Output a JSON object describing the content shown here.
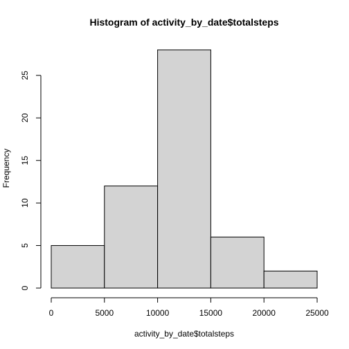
{
  "chart_data": {
    "type": "bar",
    "title": "Histogram of activity_by_date$totalsteps",
    "xlabel": "activity_by_date$totalsteps",
    "ylabel": "Frequency",
    "bins": [
      {
        "from": 0,
        "to": 5000,
        "count": 5
      },
      {
        "from": 5000,
        "to": 10000,
        "count": 12
      },
      {
        "from": 10000,
        "to": 15000,
        "count": 28
      },
      {
        "from": 15000,
        "to": 20000,
        "count": 6
      },
      {
        "from": 20000,
        "to": 25000,
        "count": 2
      }
    ],
    "xticks": [
      0,
      5000,
      10000,
      15000,
      20000,
      25000
    ],
    "yticks": [
      0,
      5,
      10,
      15,
      20,
      25
    ],
    "xlim": [
      0,
      25000
    ],
    "ylim": [
      0,
      28
    ],
    "grid": false,
    "colors": {
      "bar_fill": "#d3d3d3",
      "bar_stroke": "#000000"
    }
  }
}
